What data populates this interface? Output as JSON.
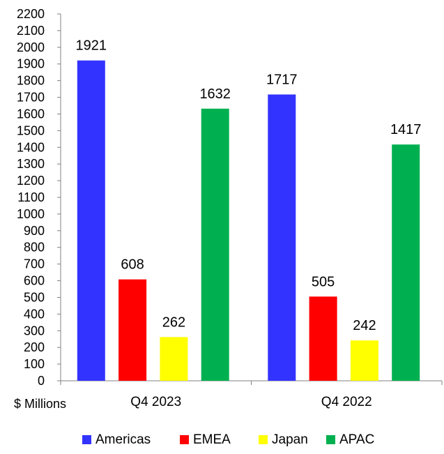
{
  "chart_data": {
    "type": "bar",
    "categories": [
      "Q4 2023",
      "Q4 2022"
    ],
    "series": [
      {
        "name": "Americas",
        "color": "#3333ff",
        "values": [
          1921,
          1717
        ]
      },
      {
        "name": "EMEA",
        "color": "#ff0000",
        "values": [
          608,
          505
        ]
      },
      {
        "name": "Japan",
        "color": "#ffff00",
        "values": [
          262,
          242
        ]
      },
      {
        "name": "APAC",
        "color": "#00b050",
        "values": [
          1632,
          1417
        ]
      }
    ],
    "title": "",
    "xlabel": "",
    "ylabel": "$ Millions",
    "ylim": [
      0,
      2200
    ],
    "ytick_step": 100,
    "grid": false,
    "legend_position": "bottom"
  }
}
